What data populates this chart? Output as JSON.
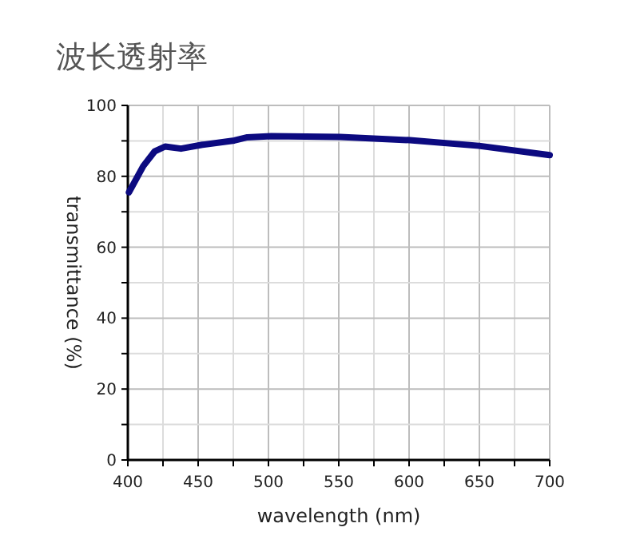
{
  "chart_data": {
    "type": "line",
    "title": "波长透射率",
    "xlabel": "wavelength (nm)",
    "ylabel": "transmittance (%)",
    "x": [
      400.8,
      411,
      419,
      426.5,
      437.8,
      453,
      475.7,
      485,
      502,
      551,
      600.5,
      649.7,
      700
    ],
    "series": [
      {
        "color": "#0c0a80",
        "values": [
          75.5,
          82.9,
          87,
          88.4,
          87.8,
          88.9,
          90.1,
          91,
          91.3,
          91.1,
          90.2,
          88.6,
          86.0
        ]
      }
    ],
    "xlim": [
      400,
      700
    ],
    "ylim": [
      0,
      100
    ],
    "xticks": [
      400,
      {
        "value": 425,
        "label": null
      },
      450,
      {
        "value": 475,
        "label": null
      },
      500,
      {
        "value": 525,
        "label": null
      },
      550,
      {
        "value": 575,
        "label": null
      },
      600,
      {
        "value": 625,
        "label": null
      },
      650,
      {
        "value": 675,
        "label": null
      },
      700
    ],
    "yticks": [
      0,
      {
        "value": 10,
        "label": null
      },
      20,
      {
        "value": 30,
        "label": null
      },
      40,
      {
        "value": 50,
        "label": null
      },
      60,
      {
        "value": 70,
        "label": null
      },
      80,
      {
        "value": 90,
        "label": null
      },
      100
    ],
    "grid": true
  }
}
